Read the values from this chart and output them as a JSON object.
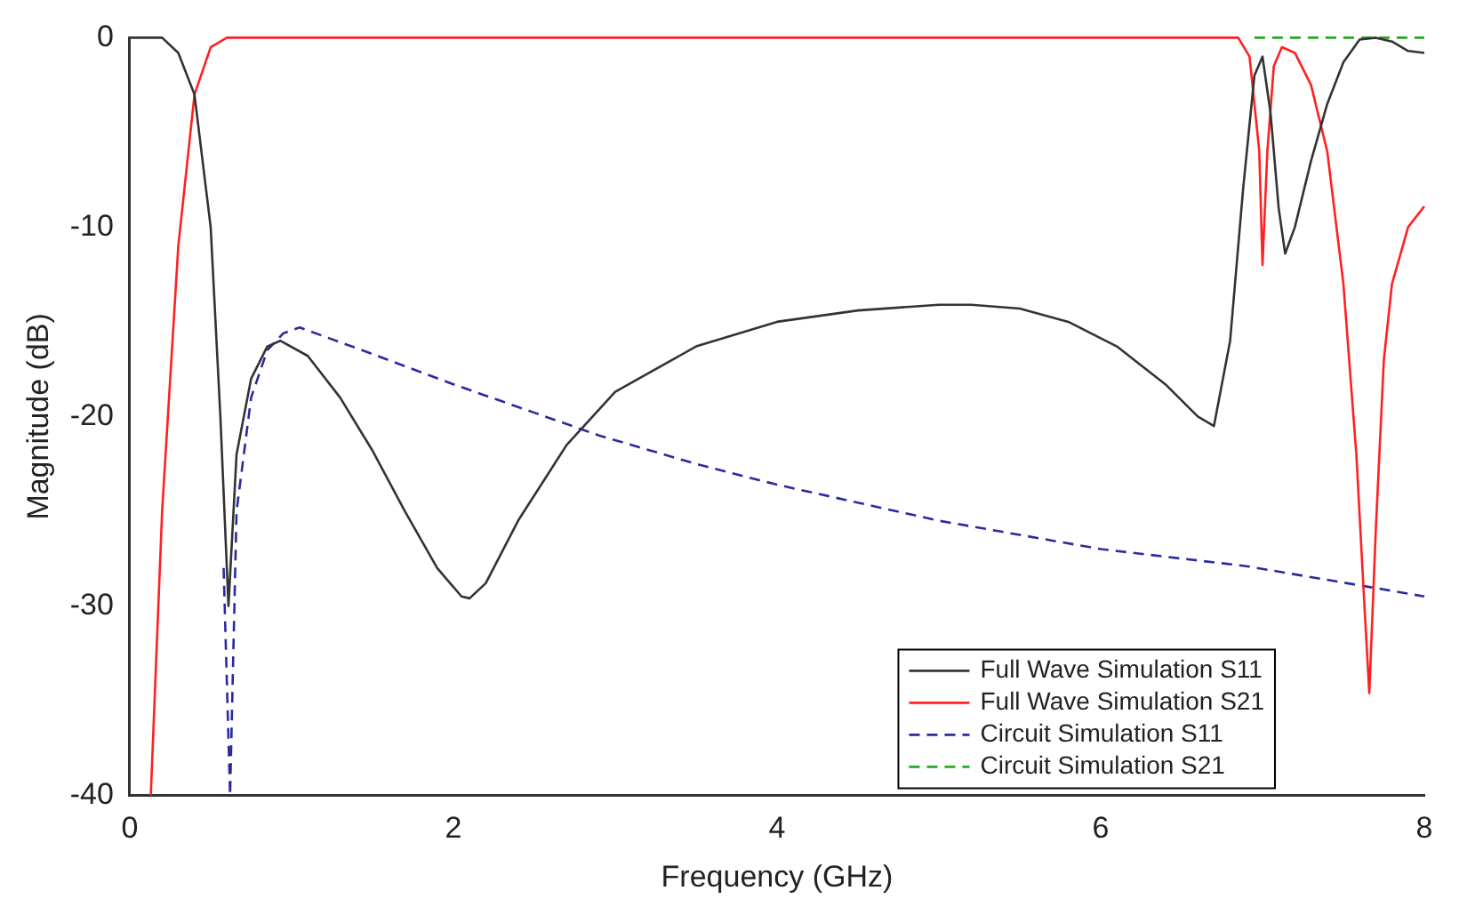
{
  "chart_data": {
    "type": "line",
    "xlabel": "Frequency (GHz)",
    "ylabel": "Magnitude (dB)",
    "xlim": [
      0,
      8
    ],
    "ylim": [
      -40,
      0
    ],
    "xticks": [
      0,
      2,
      4,
      6,
      8
    ],
    "yticks": [
      0,
      -10,
      -20,
      -30,
      -40
    ],
    "grid": false,
    "legend": "bottom right",
    "marker": "none",
    "series": [
      {
        "name": "Full Wave Simulation S11",
        "color": "#333333",
        "line_style": "solid",
        "x": [
          0,
          0.2,
          0.3,
          0.4,
          0.5,
          0.56,
          0.61,
          0.66,
          0.75,
          0.85,
          0.93,
          1.1,
          1.3,
          1.5,
          1.7,
          1.9,
          2.05,
          2.1,
          2.2,
          2.4,
          2.7,
          3.0,
          3.5,
          4.0,
          4.5,
          5.0,
          5.2,
          5.5,
          5.8,
          6.1,
          6.4,
          6.6,
          6.7,
          6.8,
          6.88,
          6.95,
          7.0,
          7.05,
          7.1,
          7.14,
          7.2,
          7.3,
          7.4,
          7.5,
          7.6,
          7.7,
          7.8,
          7.9,
          8.0
        ],
        "values": [
          0,
          0,
          -0.8,
          -3,
          -10,
          -20,
          -30,
          -22,
          -18,
          -16.3,
          -16,
          -16.8,
          -19,
          -21.8,
          -25,
          -28,
          -29.5,
          -29.6,
          -28.8,
          -25.5,
          -21.5,
          -18.7,
          -16.3,
          -15,
          -14.4,
          -14.1,
          -14.1,
          -14.3,
          -15,
          -16.3,
          -18.3,
          -20,
          -20.5,
          -16,
          -8,
          -2,
          -1,
          -4,
          -9,
          -11.4,
          -10,
          -6.5,
          -3.5,
          -1.3,
          -0.1,
          0,
          -0.2,
          -0.7,
          -0.8
        ]
      },
      {
        "name": "Full Wave Simulation S21",
        "color": "#ff2020",
        "line_style": "solid",
        "x": [
          0.13,
          0.2,
          0.3,
          0.4,
          0.5,
          0.6,
          0.7,
          1,
          2,
          3,
          4,
          5,
          6,
          6.85,
          6.92,
          6.98,
          7.0,
          7.03,
          7.07,
          7.12,
          7.2,
          7.3,
          7.4,
          7.5,
          7.58,
          7.63,
          7.66,
          7.7,
          7.75,
          7.8,
          7.9,
          8.0
        ],
        "values": [
          -40,
          -25,
          -11,
          -3,
          -0.5,
          0,
          0,
          0,
          0,
          0,
          0,
          0,
          0,
          0,
          -1,
          -6,
          -12,
          -6,
          -1.5,
          -0.5,
          -0.8,
          -2.5,
          -6,
          -13,
          -22,
          -30,
          -34.6,
          -26,
          -17,
          -13,
          -10,
          -8.9
        ]
      },
      {
        "name": "Circuit Simulation S11",
        "color": "#2a2aa0",
        "line_style": "dashed",
        "x": [
          0.58,
          0.62,
          0.66,
          0.75,
          0.85,
          0.95,
          1.05,
          1.5,
          2,
          2.5,
          2.9,
          3.5,
          4,
          5,
          6,
          6.9,
          7.66,
          8
        ],
        "values": [
          -28,
          -40,
          -25,
          -19,
          -16.5,
          -15.6,
          -15.3,
          -16.7,
          -18.3,
          -19.8,
          -21,
          -22.5,
          -23.6,
          -25.5,
          -27,
          -27.9,
          -29,
          -29.5
        ]
      },
      {
        "name": "Circuit Simulation S21",
        "color": "#22aa22",
        "line_style": "dashed",
        "x": [
          6.95,
          8
        ],
        "values": [
          0,
          0
        ]
      }
    ]
  }
}
